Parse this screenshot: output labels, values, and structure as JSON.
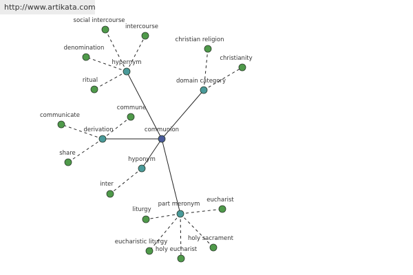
{
  "header": {
    "url": "http://www.artikata.com"
  },
  "nodes": [
    {
      "label": "communion"
    },
    {
      "label": "hypernym"
    },
    {
      "label": "domain category"
    },
    {
      "label": "derivation"
    },
    {
      "label": "hyponym"
    },
    {
      "label": "part meronym"
    },
    {
      "label": "social intercourse"
    },
    {
      "label": "intercourse"
    },
    {
      "label": "denomination"
    },
    {
      "label": "ritual"
    },
    {
      "label": "christian religion"
    },
    {
      "label": "christianity"
    },
    {
      "label": "commune"
    },
    {
      "label": "communicate"
    },
    {
      "label": "share"
    },
    {
      "label": "inter"
    },
    {
      "label": "liturgy"
    },
    {
      "label": "eucharist"
    },
    {
      "label": "eucharistic liturgy"
    },
    {
      "label": "holy eucharist"
    },
    {
      "label": "holy sacrament"
    }
  ]
}
